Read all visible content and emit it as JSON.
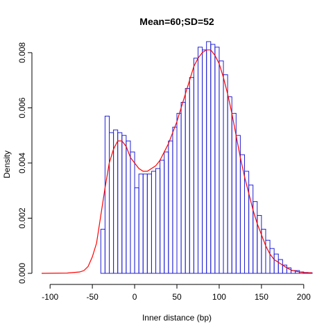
{
  "chart_data": {
    "type": "histogram",
    "title": "Mean=60;SD=52",
    "xlabel": "Inner distance (bp)",
    "ylabel": "Density",
    "xlim": [
      -110,
      210
    ],
    "ylim": [
      0,
      0.0084
    ],
    "x_ticks": [
      -100,
      -50,
      0,
      50,
      100,
      150,
      200
    ],
    "y_ticks": [
      0.0,
      0.002,
      0.004,
      0.006,
      0.008
    ],
    "y_tick_labels": [
      "0.000",
      "0.002",
      "0.004",
      "0.006",
      "0.008"
    ],
    "bin_width": 5,
    "bins_start": [
      -40,
      -35,
      -30,
      -25,
      -20,
      -15,
      -10,
      -5,
      0,
      5,
      10,
      15,
      20,
      25,
      30,
      35,
      40,
      45,
      50,
      55,
      60,
      65,
      70,
      75,
      80,
      85,
      90,
      95,
      100,
      105,
      110,
      115,
      120,
      125,
      130,
      135,
      140,
      145,
      150,
      155,
      160,
      165,
      170,
      175,
      180,
      185,
      190,
      195,
      200,
      205
    ],
    "densities": [
      0.0016,
      0.0057,
      0.0051,
      0.0052,
      0.0051,
      0.005,
      0.0048,
      0.0044,
      0.0031,
      0.0036,
      0.0036,
      0.0036,
      0.0037,
      0.0038,
      0.0041,
      0.0044,
      0.0048,
      0.0053,
      0.0058,
      0.0062,
      0.0067,
      0.0071,
      0.0078,
      0.0082,
      0.0081,
      0.0084,
      0.0083,
      0.0082,
      0.0077,
      0.0072,
      0.0064,
      0.0058,
      0.005,
      0.0043,
      0.0037,
      0.0032,
      0.0026,
      0.0021,
      0.0016,
      0.0012,
      0.0009,
      0.0007,
      0.0005,
      0.0003,
      0.0002,
      0.0001,
      0.0001,
      5e-05,
      3e-05,
      2e-05
    ],
    "density_curve": {
      "x": [
        -110,
        -80,
        -65,
        -60,
        -55,
        -50,
        -45,
        -40,
        -35,
        -30,
        -25,
        -20,
        -15,
        -10,
        -5,
        0,
        5,
        10,
        15,
        20,
        25,
        30,
        35,
        40,
        45,
        50,
        55,
        60,
        65,
        70,
        75,
        80,
        85,
        90,
        95,
        100,
        105,
        110,
        115,
        120,
        125,
        130,
        135,
        140,
        145,
        150,
        155,
        160,
        165,
        170,
        175,
        180,
        185,
        190,
        195,
        200,
        210
      ],
      "y": [
        0,
        1e-05,
        5e-05,
        0.0001,
        0.00025,
        0.0006,
        0.0011,
        0.0021,
        0.0031,
        0.004,
        0.0045,
        0.0048,
        0.0048,
        0.0046,
        0.0042,
        0.004,
        0.0038,
        0.0037,
        0.0037,
        0.0038,
        0.0039,
        0.0041,
        0.0044,
        0.0047,
        0.0051,
        0.0055,
        0.006,
        0.0065,
        0.007,
        0.0075,
        0.0078,
        0.008,
        0.0081,
        0.0081,
        0.0079,
        0.0076,
        0.0071,
        0.0065,
        0.0058,
        0.005,
        0.0042,
        0.0035,
        0.0029,
        0.0023,
        0.0018,
        0.0014,
        0.001,
        0.0007,
        0.0005,
        0.0004,
        0.0003,
        0.0002,
        0.00012,
        8e-05,
        5e-05,
        3e-05,
        2e-05
      ]
    },
    "colors": {
      "bars": "#1f1fd6",
      "curve": "#ff0000"
    },
    "grid": false,
    "legend": "none"
  }
}
